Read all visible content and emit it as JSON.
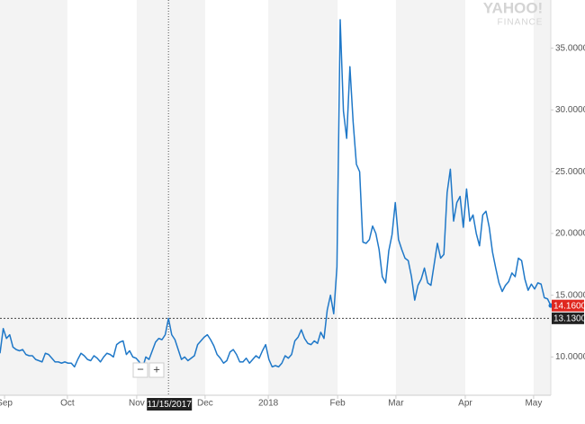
{
  "chart_data": {
    "type": "line",
    "logo": [
      "YAHOO!",
      "FINANCE"
    ],
    "zoom": [
      "−",
      "+"
    ],
    "series": [
      {
        "color": "#1f78c8",
        "values": [
          10.3,
          12.3,
          11.5,
          11.8,
          10.8,
          10.6,
          10.5,
          10.6,
          10.2,
          10.1,
          10.1,
          9.8,
          9.7,
          9.6,
          10.3,
          10.2,
          9.9,
          9.6,
          9.6,
          9.5,
          9.6,
          9.5,
          9.5,
          9.2,
          9.8,
          10.3,
          10.1,
          9.8,
          9.7,
          10.1,
          9.9,
          9.6,
          10.0,
          10.3,
          10.2,
          10.0,
          11.0,
          11.2,
          11.3,
          10.2,
          10.5,
          10.0,
          9.9,
          9.6,
          9.1,
          10.0,
          9.8,
          10.5,
          11.2,
          11.5,
          11.4,
          11.8,
          13.13,
          11.8,
          11.4,
          10.6,
          9.8,
          10.0,
          9.7,
          9.9,
          10.1,
          11.0,
          11.3,
          11.6,
          11.8,
          11.4,
          10.9,
          10.2,
          9.9,
          9.5,
          9.7,
          10.4,
          10.6,
          10.2,
          9.6,
          9.6,
          9.9,
          9.5,
          9.8,
          10.1,
          9.9,
          10.5,
          11.0,
          9.8,
          9.2,
          9.3,
          9.2,
          9.5,
          10.1,
          9.9,
          10.2,
          11.3,
          11.6,
          12.2,
          11.5,
          11.1,
          11.0,
          11.3,
          11.1,
          12.0,
          11.5,
          13.8,
          15.0,
          13.5,
          17.3,
          37.3,
          29.9,
          27.7,
          33.5,
          29.0,
          25.6,
          25.0,
          19.3,
          19.2,
          19.5,
          20.6,
          20.0,
          18.7,
          16.5,
          16.0,
          18.6,
          19.9,
          22.5,
          19.5,
          18.7,
          18.0,
          17.8,
          16.5,
          14.6,
          15.8,
          16.3,
          17.2,
          16.0,
          15.8,
          17.5,
          19.2,
          18.0,
          18.3,
          23.3,
          25.2,
          21.0,
          22.5,
          23.0,
          20.5,
          23.6,
          21.0,
          21.5,
          20.0,
          19.0,
          21.5,
          21.8,
          20.5,
          18.5,
          17.2,
          16.0,
          15.3,
          15.8,
          16.1,
          16.8,
          16.5,
          18.0,
          17.8,
          16.3,
          15.4,
          15.9,
          15.5,
          16.0,
          15.9,
          14.8,
          14.7,
          14.16
        ]
      }
    ],
    "xlim": [
      0,
      170
    ],
    "xticks": [
      {
        "value": 1.4,
        "label": "Sep"
      },
      {
        "value": 20.8,
        "label": "Oct"
      },
      {
        "value": 42.2,
        "label": "Nov"
      },
      {
        "value": 63.3,
        "label": "Dec"
      },
      {
        "value": 82.8,
        "label": "2018"
      },
      {
        "value": 104.2,
        "label": "Feb"
      },
      {
        "value": 122.2,
        "label": "Mar"
      },
      {
        "value": 143.6,
        "label": "Apr"
      },
      {
        "value": 164.7,
        "label": "May"
      }
    ],
    "ylim": [
      6.9,
      38.9
    ],
    "yticks": [
      {
        "value": 10,
        "label": "10.0000"
      },
      {
        "value": 15,
        "label": "15.0000"
      },
      {
        "value": 20,
        "label": "20.0000"
      },
      {
        "value": 25,
        "label": "25.0000"
      },
      {
        "value": 30,
        "label": "30.0000"
      },
      {
        "value": 35,
        "label": "35.0000"
      }
    ],
    "last_price": {
      "value": 14.16,
      "label": "14.1600"
    },
    "crosshair": {
      "x": 52,
      "x_label": "11/15/2017",
      "y": 13.13,
      "y_label": "13.1300"
    }
  }
}
